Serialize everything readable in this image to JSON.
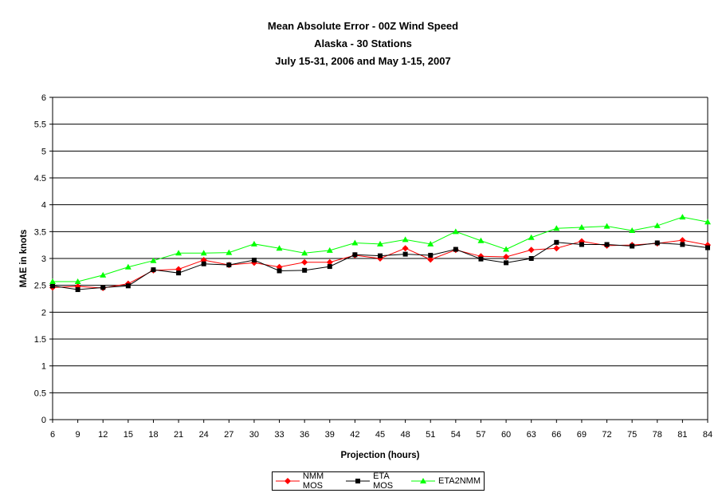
{
  "title": {
    "line1": "Mean Absolute Error - 00Z Wind Speed",
    "line2": "Alaska - 30 Stations",
    "line3": "July 15-31, 2006 and May 1-15, 2007"
  },
  "chart_data": {
    "type": "line",
    "xlabel": "Projection (hours)",
    "ylabel": "MAE in knots",
    "ylim": [
      0,
      6
    ],
    "ytick_step": 0.5,
    "yticks": [
      "0",
      "0.5",
      "1",
      "1.5",
      "2",
      "2.5",
      "3",
      "3.5",
      "4",
      "4.5",
      "5",
      "5.5",
      "6"
    ],
    "grid": "horizontal",
    "legend_position": "bottom",
    "categories": [
      "6",
      "9",
      "12",
      "15",
      "18",
      "21",
      "24",
      "27",
      "30",
      "33",
      "36",
      "39",
      "42",
      "45",
      "48",
      "51",
      "54",
      "57",
      "60",
      "63",
      "66",
      "69",
      "72",
      "75",
      "78",
      "81",
      "84"
    ],
    "series": [
      {
        "name": "NMM MOS",
        "color": "#ff0000",
        "marker": "diamond",
        "values": [
          2.46,
          2.48,
          2.45,
          2.53,
          2.78,
          2.8,
          2.97,
          2.88,
          2.92,
          2.84,
          2.93,
          2.93,
          3.06,
          3.0,
          3.19,
          2.98,
          3.16,
          3.04,
          3.03,
          3.16,
          3.19,
          3.32,
          3.24,
          3.25,
          3.28,
          3.34,
          3.25
        ]
      },
      {
        "name": "ETA MOS",
        "color": "#000000",
        "marker": "square",
        "values": [
          2.49,
          2.42,
          2.46,
          2.49,
          2.79,
          2.73,
          2.9,
          2.88,
          2.97,
          2.77,
          2.78,
          2.85,
          3.07,
          3.05,
          3.08,
          3.06,
          3.17,
          2.99,
          2.92,
          3.0,
          3.3,
          3.26,
          3.26,
          3.23,
          3.29,
          3.26,
          3.2
        ]
      },
      {
        "name": "ETA2NMM",
        "color": "#00ff00",
        "marker": "triangle",
        "values": [
          2.57,
          2.57,
          2.69,
          2.84,
          2.96,
          3.1,
          3.1,
          3.11,
          3.27,
          3.19,
          3.1,
          3.15,
          3.29,
          3.27,
          3.35,
          3.27,
          3.5,
          3.33,
          3.17,
          3.39,
          3.56,
          3.58,
          3.6,
          3.52,
          3.61,
          3.77,
          3.68
        ]
      }
    ]
  }
}
